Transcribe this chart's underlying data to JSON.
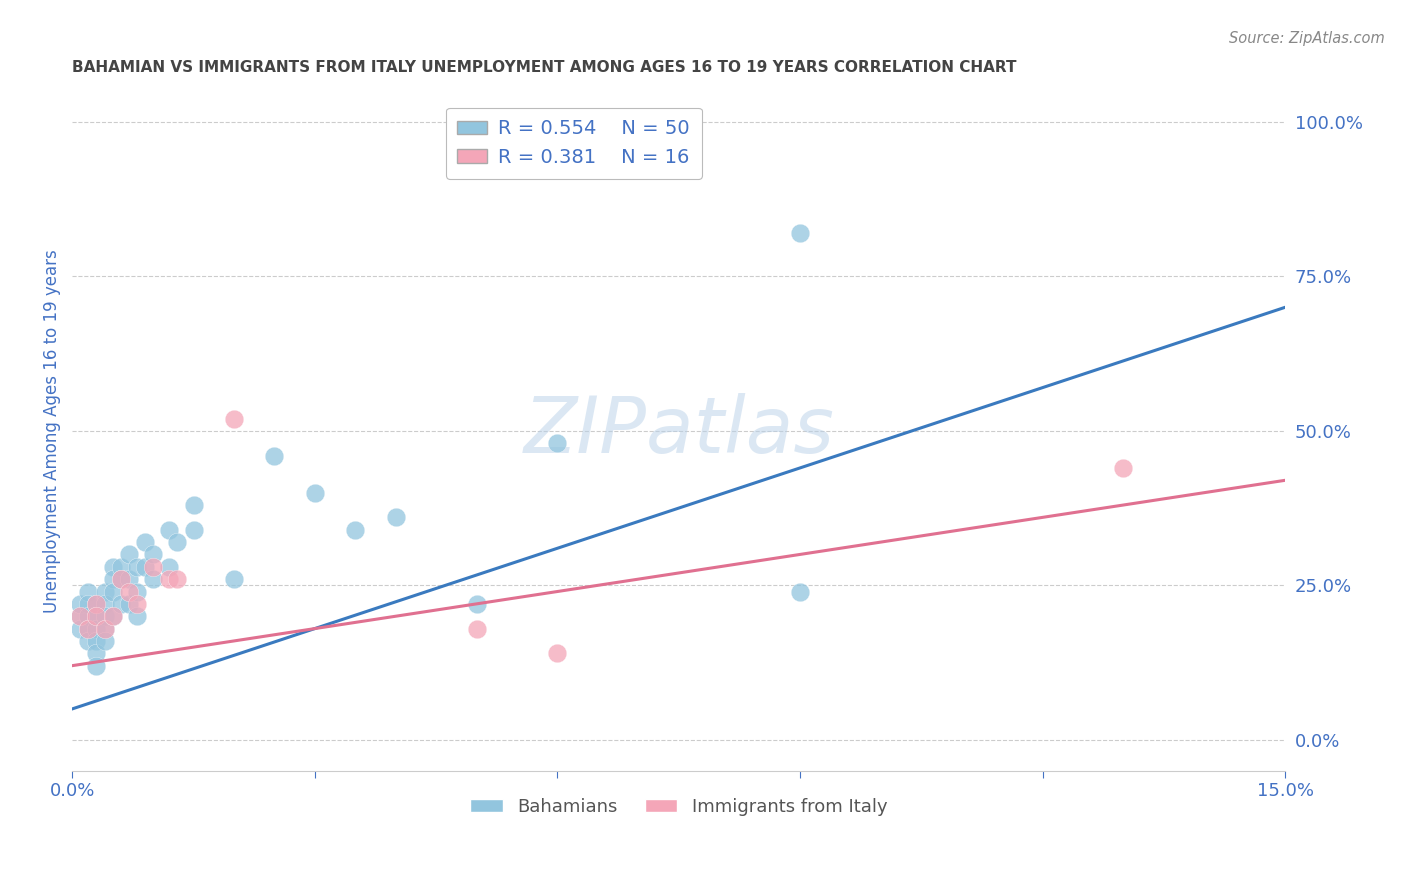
{
  "title": "BAHAMIAN VS IMMIGRANTS FROM ITALY UNEMPLOYMENT AMONG AGES 16 TO 19 YEARS CORRELATION CHART",
  "source": "Source: ZipAtlas.com",
  "ylabel": "Unemployment Among Ages 16 to 19 years",
  "xlim": [
    0.0,
    0.15
  ],
  "ylim": [
    -0.05,
    1.05
  ],
  "right_yticks": [
    0.0,
    0.25,
    0.5,
    0.75,
    1.0
  ],
  "right_yticklabels": [
    "0.0%",
    "25.0%",
    "50.0%",
    "75.0%",
    "100.0%"
  ],
  "xticks": [
    0.0,
    0.03,
    0.06,
    0.09,
    0.12,
    0.15
  ],
  "xticklabels": [
    "0.0%",
    "",
    "",
    "",
    "",
    "15.0%"
  ],
  "blue_R": 0.554,
  "blue_N": 50,
  "pink_R": 0.381,
  "pink_N": 16,
  "blue_color": "#92c5de",
  "pink_color": "#f4a6b8",
  "blue_line_color": "#3a7abf",
  "pink_line_color": "#e07090",
  "legend_label_blue": "Bahamians",
  "legend_label_pink": "Immigrants from Italy",
  "watermark": "ZIPatlas",
  "blue_scatter_x": [
    0.001,
    0.001,
    0.001,
    0.002,
    0.002,
    0.002,
    0.002,
    0.002,
    0.003,
    0.003,
    0.003,
    0.003,
    0.003,
    0.003,
    0.004,
    0.004,
    0.004,
    0.004,
    0.004,
    0.005,
    0.005,
    0.005,
    0.005,
    0.006,
    0.006,
    0.006,
    0.007,
    0.007,
    0.007,
    0.008,
    0.008,
    0.008,
    0.009,
    0.009,
    0.01,
    0.01,
    0.012,
    0.012,
    0.013,
    0.015,
    0.015,
    0.02,
    0.025,
    0.03,
    0.035,
    0.04,
    0.05,
    0.06,
    0.09,
    0.09
  ],
  "blue_scatter_y": [
    0.2,
    0.22,
    0.18,
    0.24,
    0.22,
    0.2,
    0.18,
    0.16,
    0.22,
    0.2,
    0.18,
    0.16,
    0.14,
    0.12,
    0.24,
    0.22,
    0.2,
    0.18,
    0.16,
    0.28,
    0.26,
    0.24,
    0.2,
    0.28,
    0.26,
    0.22,
    0.3,
    0.26,
    0.22,
    0.28,
    0.24,
    0.2,
    0.32,
    0.28,
    0.3,
    0.26,
    0.34,
    0.28,
    0.32,
    0.38,
    0.34,
    0.26,
    0.46,
    0.4,
    0.34,
    0.36,
    0.22,
    0.48,
    0.24,
    0.82
  ],
  "pink_scatter_x": [
    0.001,
    0.002,
    0.003,
    0.003,
    0.004,
    0.005,
    0.006,
    0.007,
    0.008,
    0.01,
    0.012,
    0.013,
    0.02,
    0.05,
    0.06,
    0.13
  ],
  "pink_scatter_y": [
    0.2,
    0.18,
    0.22,
    0.2,
    0.18,
    0.2,
    0.26,
    0.24,
    0.22,
    0.28,
    0.26,
    0.26,
    0.52,
    0.18,
    0.14,
    0.44
  ],
  "blue_trend_x": [
    0.0,
    0.15
  ],
  "blue_trend_y": [
    0.05,
    0.7
  ],
  "pink_trend_x": [
    0.0,
    0.15
  ],
  "pink_trend_y": [
    0.12,
    0.42
  ],
  "bg_color": "#ffffff",
  "grid_color": "#cccccc",
  "title_color": "#444444",
  "axis_color": "#4472c4",
  "grid_yticks": [
    0.0,
    0.25,
    0.5,
    0.75,
    1.0
  ]
}
